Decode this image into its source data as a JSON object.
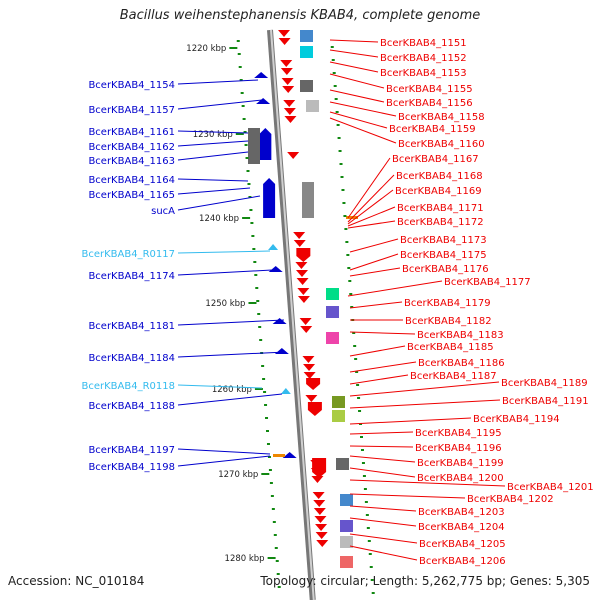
{
  "title": "Bacillus weihenstephanensis KBAB4, complete genome",
  "footer": {
    "accession": "Accession: NC_010184",
    "topology": "Topology: circular; Length: 5,262,775 bp; Genes: 5,305"
  },
  "colors": {
    "left_gene": "#0000cc",
    "rna_gene": "#33bbee",
    "right_gene": "#ee0000",
    "backbone": "#999999",
    "tick": "#118811"
  },
  "scale_ticks": [
    "1220 kbp",
    "1230 kbp",
    "1240 kbp",
    "1250 kbp",
    "1260 kbp",
    "1270 kbp",
    "1280 kbp"
  ],
  "left_labels": [
    {
      "text": "BcerKBAB4_1154",
      "kind": "cds"
    },
    {
      "text": "BcerKBAB4_1157",
      "kind": "cds"
    },
    {
      "text": "BcerKBAB4_1161",
      "kind": "cds"
    },
    {
      "text": "BcerKBAB4_1162",
      "kind": "cds"
    },
    {
      "text": "BcerKBAB4_1163",
      "kind": "cds"
    },
    {
      "text": "BcerKBAB4_1164",
      "kind": "cds"
    },
    {
      "text": "BcerKBAB4_1165",
      "kind": "cds"
    },
    {
      "text": "sucA",
      "kind": "cds"
    },
    {
      "text": "BcerKBAB4_R0117",
      "kind": "rna"
    },
    {
      "text": "BcerKBAB4_1174",
      "kind": "cds"
    },
    {
      "text": "BcerKBAB4_1181",
      "kind": "cds"
    },
    {
      "text": "BcerKBAB4_1184",
      "kind": "cds"
    },
    {
      "text": "BcerKBAB4_R0118",
      "kind": "rna"
    },
    {
      "text": "BcerKBAB4_1188",
      "kind": "cds"
    },
    {
      "text": "BcerKBAB4_1197",
      "kind": "cds"
    },
    {
      "text": "BcerKBAB4_1198",
      "kind": "cds"
    }
  ],
  "right_labels": [
    "BcerKBAB4_1151",
    "BcerKBAB4_1152",
    "BcerKBAB4_1153",
    "BcerKBAB4_1155",
    "BcerKBAB4_1156",
    "BcerKBAB4_1158",
    "BcerKBAB4_1159",
    "BcerKBAB4_1160",
    "BcerKBAB4_1167",
    "BcerKBAB4_1168",
    "BcerKBAB4_1169",
    "BcerKBAB4_1171",
    "BcerKBAB4_1172",
    "BcerKBAB4_1173",
    "BcerKBAB4_1175",
    "BcerKBAB4_1176",
    "BcerKBAB4_1177",
    "BcerKBAB4_1179",
    "BcerKBAB4_1182",
    "BcerKBAB4_1183",
    "BcerKBAB4_1185",
    "BcerKBAB4_1186",
    "BcerKBAB4_1187",
    "BcerKBAB4_1189",
    "BcerKBAB4_1191",
    "BcerKBAB4_1194",
    "BcerKBAB4_1195",
    "BcerKBAB4_1196",
    "BcerKBAB4_1199",
    "BcerKBAB4_1200",
    "BcerKBAB4_1201",
    "BcerKBAB4_1202",
    "BcerKBAB4_1203",
    "BcerKBAB4_1204",
    "BcerKBAB4_1205",
    "BcerKBAB4_1206"
  ]
}
